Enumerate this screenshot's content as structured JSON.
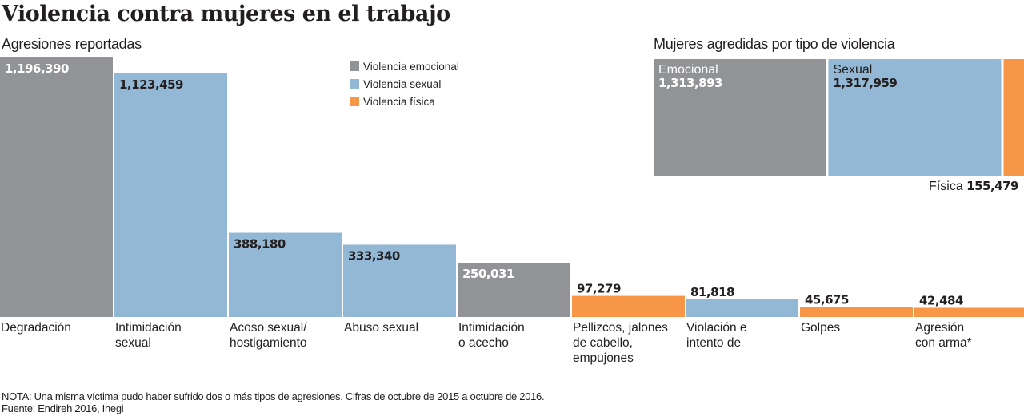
{
  "title": "Violencia contra mujeres en el trabajo",
  "colors": {
    "emocional": "#929397",
    "sexual": "#93b8d5",
    "fisica": "#f79646",
    "text": "#231f20",
    "white": "#ffffff"
  },
  "chart_data": [
    {
      "type": "bar",
      "title": "Agresiones reportadas",
      "legend_position": "top-right",
      "legend": [
        {
          "key": "emocional",
          "label": "Violencia emocional"
        },
        {
          "key": "sexual",
          "label": "Violencia sexual"
        },
        {
          "key": "fisica",
          "label": "Violencia física"
        }
      ],
      "ylim": [
        0,
        1196390
      ],
      "categories": [
        {
          "lines": [
            "Degradación"
          ],
          "value": 1196390,
          "label": "1,196,390",
          "type": "emocional"
        },
        {
          "lines": [
            "Intimidación",
            "sexual"
          ],
          "value": 1123459,
          "label": "1,123,459",
          "type": "sexual"
        },
        {
          "lines": [
            "Acoso sexual/",
            "hostigamiento"
          ],
          "value": 388180,
          "label": "388,180",
          "type": "sexual"
        },
        {
          "lines": [
            "Abuso sexual"
          ],
          "value": 333340,
          "label": "333,340",
          "type": "sexual"
        },
        {
          "lines": [
            "Intimidación",
            "o acecho"
          ],
          "value": 250031,
          "label": "250,031",
          "type": "emocional"
        },
        {
          "lines": [
            "Pellizcos, jalones",
            "de cabello,",
            "empujones"
          ],
          "value": 97279,
          "label": "97,279",
          "type": "fisica"
        },
        {
          "lines": [
            "Violación e",
            "intento de"
          ],
          "value": 81818,
          "label": "81,818",
          "type": "sexual"
        },
        {
          "lines": [
            "Golpes"
          ],
          "value": 45675,
          "label": "45,675",
          "type": "fisica"
        },
        {
          "lines": [
            "Agresión",
            "con arma*"
          ],
          "value": 42484,
          "label": "42,484",
          "type": "fisica"
        }
      ]
    },
    {
      "type": "treemap",
      "title": "Mujeres agredidas por tipo de violencia",
      "items": [
        {
          "name": "Emocional",
          "value": 1313893,
          "label": "1,313,893",
          "type": "emocional"
        },
        {
          "name": "Sexual",
          "value": 1317959,
          "label": "1,317,959",
          "type": "sexual"
        },
        {
          "name": "Física",
          "value": 155479,
          "label": "155,479",
          "type": "fisica"
        }
      ]
    }
  ],
  "notes": {
    "nota": "NOTA: Una misma víctima pudo haber sufrido dos o más tipos de agresiones. Cifras de octubre de 2015 a octubre de 2016.",
    "fuente": "Fuente: Endireh 2016, Inegi"
  }
}
